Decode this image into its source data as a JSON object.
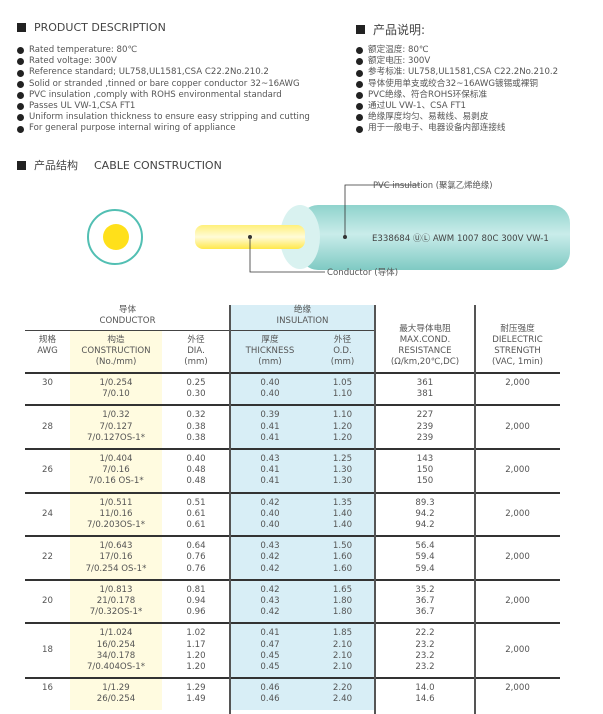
{
  "description_en": {
    "title": "PRODUCT DESCRIPTION",
    "items": [
      "Rated temperature: 80℃",
      "Rated voltage: 300V",
      "Reference standard; UL758,UL1581,CSA C22.2No.210.2",
      "Solid or stranded ,tinned or bare copper conductor 32~16AWG",
      "PVC insulation ,comply with ROHS environmental standard",
      "Passes UL VW-1,CSA FT1",
      "Uniform insulation thickness to ensure easy stripping and cutting",
      "For general purpose internal wiring of appliance"
    ]
  },
  "description_cn": {
    "title": "产品说明:",
    "items": [
      "额定温度: 80℃",
      "额定电压: 300V",
      "参考标准: UL758,UL1581,CSA C22.2No.210.2",
      "导体使用单支或绞合32~16AWG镀锡或裸铜",
      "PVC绝缘、符合ROHS环保标准",
      "通过UL VW-1、CSA FT1",
      "绝缘厚度均匀、易裁线、易剥皮",
      "用于一般电子、电器设备内部连接线"
    ]
  },
  "construction": {
    "title_cn": "产品结构",
    "title_en": "CABLE CONSTRUCTION",
    "insulation_label": "PVC insulation (聚氯乙烯绝缘)",
    "conductor_label": "Conductor (导体)",
    "cable_print": "E338684 ⓊⓁ AWM 1007 80C 300V VW-1",
    "colors": {
      "insulation": "#8fd3cc",
      "conductor": "#ffe01a"
    }
  },
  "table": {
    "headers": {
      "conductor_cn": "导体",
      "conductor_en": "CONDUCTOR",
      "insulation_cn": "绝缘",
      "insulation_en": "INSULATION",
      "awg_cn": "规格",
      "awg_en": "AWG",
      "construction_cn": "构造",
      "construction_en": "CONSTRUCTION",
      "construction_unit": "(No./mm)",
      "dia_cn": "外径",
      "dia_en": "DIA.",
      "dia_unit": "(mm)",
      "thickness_cn": "厚度",
      "thickness_en": "THICKNESS",
      "thickness_unit": "(mm)",
      "od_cn": "外径",
      "od_en": "O.D.",
      "od_unit": "(mm)",
      "res_cn": "最大导体电阻",
      "res_en1": "MAX.COND.",
      "res_en2": "RESISTANCE",
      "res_unit": "(Ω/km,20℃,DC)",
      "die_cn": "耐压强度",
      "die_en1": "DIELECTRIC",
      "die_en2": "STRENGTH",
      "die_unit": "(VAC, 1min)"
    },
    "colors": {
      "construction_band": "#fffbe0",
      "insulation_band": "#d8eef6"
    },
    "rows": [
      {
        "awg": "30",
        "construction": [
          "1/0.254",
          "7/0.10"
        ],
        "dia": [
          "0.25",
          "0.30"
        ],
        "thickness": [
          "0.40",
          "0.40"
        ],
        "od": [
          "1.05",
          "1.10"
        ],
        "resistance": [
          "361",
          "381"
        ],
        "dielectric": "2,000"
      },
      {
        "awg": "28",
        "construction": [
          "1/0.32",
          "7/0.127",
          "7/0.127OS-1*"
        ],
        "dia": [
          "0.32",
          "0.38",
          "0.38"
        ],
        "thickness": [
          "0.39",
          "0.41",
          "0.41"
        ],
        "od": [
          "1.10",
          "1.20",
          "1.20"
        ],
        "resistance": [
          "227",
          "239",
          "239"
        ],
        "dielectric": "2,000"
      },
      {
        "awg": "26",
        "construction": [
          "1/0.404",
          "7/0.16",
          "7/0.16 OS-1*"
        ],
        "dia": [
          "0.40",
          "0.48",
          "0.48"
        ],
        "thickness": [
          "0.43",
          "0.41",
          "0.41"
        ],
        "od": [
          "1.25",
          "1.30",
          "1.30"
        ],
        "resistance": [
          "143",
          "150",
          "150"
        ],
        "dielectric": "2,000"
      },
      {
        "awg": "24",
        "construction": [
          "1/0.511",
          "11/0.16",
          "7/0.203OS-1*"
        ],
        "dia": [
          "0.51",
          "0.61",
          "0.61"
        ],
        "thickness": [
          "0.42",
          "0.40",
          "0.40"
        ],
        "od": [
          "1.35",
          "1.40",
          "1.40"
        ],
        "resistance": [
          "89.3",
          "94.2",
          "94.2"
        ],
        "dielectric": "2,000"
      },
      {
        "awg": "22",
        "construction": [
          "1/0.643",
          "17/0.16",
          "7/0.254 OS-1*"
        ],
        "dia": [
          "0.64",
          "0.76",
          "0.76"
        ],
        "thickness": [
          "0.43",
          "0.42",
          "0.42"
        ],
        "od": [
          "1.50",
          "1.60",
          "1.60"
        ],
        "resistance": [
          "56.4",
          "59.4",
          "59.4"
        ],
        "dielectric": "2,000"
      },
      {
        "awg": "20",
        "construction": [
          "1/0.813",
          "21/0.178",
          "7/0.32OS-1*"
        ],
        "dia": [
          "0.81",
          "0.94",
          "0.96"
        ],
        "thickness": [
          "0.42",
          "0.43",
          "0.42"
        ],
        "od": [
          "1.65",
          "1.80",
          "1.80"
        ],
        "resistance": [
          "35.2",
          "36.7",
          "36.7"
        ],
        "dielectric": "2,000"
      },
      {
        "awg": "18",
        "construction": [
          "1/1.024",
          "16/0.254",
          "34/0.178",
          "7/0.404OS-1*"
        ],
        "dia": [
          "1.02",
          "1.17",
          "1.20",
          "1.20"
        ],
        "thickness": [
          "0.41",
          "0.47",
          "0.45",
          "0.45"
        ],
        "od": [
          "1.85",
          "2.10",
          "2.10",
          "2.10"
        ],
        "resistance": [
          "22.2",
          "23.2",
          "23.2",
          "23.2"
        ],
        "dielectric": "2,000"
      },
      {
        "awg": "16",
        "construction": [
          "1/1.29",
          "26/0.254"
        ],
        "dia": [
          "1.29",
          "1.49"
        ],
        "thickness": [
          "0.46",
          "0.46"
        ],
        "od": [
          "2.20",
          "2.40"
        ],
        "resistance": [
          "14.0",
          "14.6"
        ],
        "dielectric": "2,000"
      }
    ]
  }
}
